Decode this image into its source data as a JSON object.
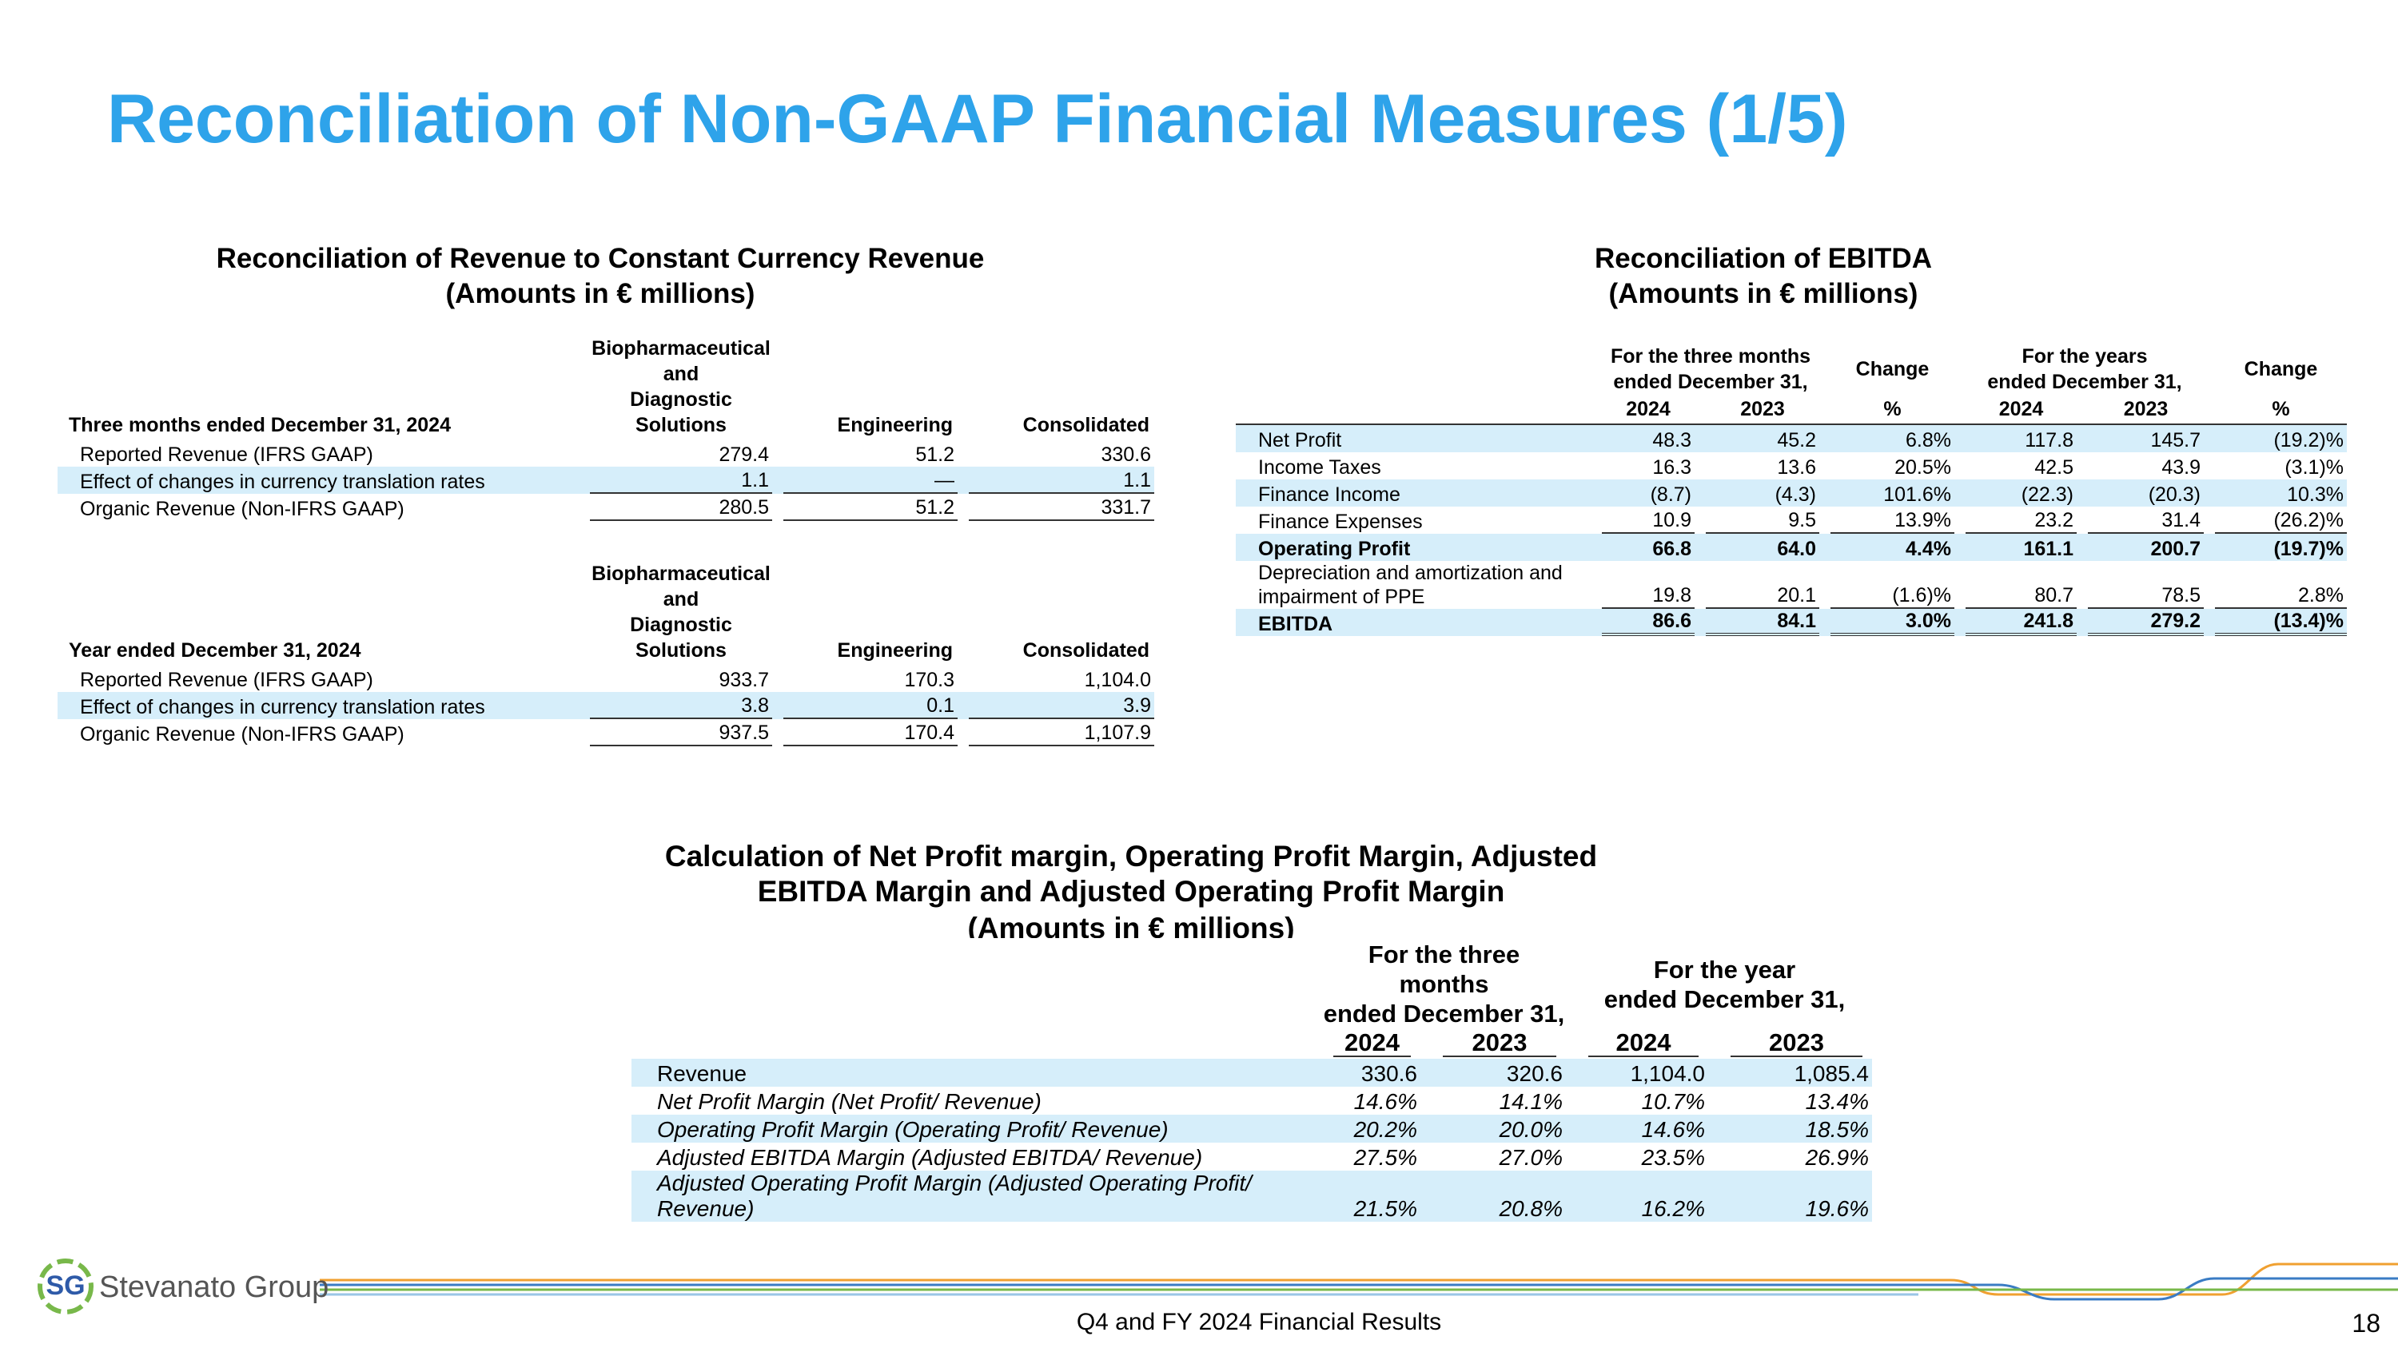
{
  "title": "Reconciliation of Non-GAAP Financial Measures (1/5)",
  "revenue_table": {
    "title": "Reconciliation of Revenue to Constant Currency Revenue",
    "subtitle": "(Amounts in € millions)",
    "sections": [
      {
        "period": "Three months ended December 31, 2024",
        "columns": [
          "Biopharmaceutical\nand\nDiagnostic\nSolutions",
          "Engineering",
          "Consolidated"
        ],
        "rows": [
          {
            "label": "Reported Revenue (IFRS GAAP)",
            "values": [
              "279.4",
              "51.2",
              "330.6"
            ]
          },
          {
            "label": "Effect of changes in currency translation rates",
            "values": [
              "1.1",
              "—",
              "1.1"
            ]
          },
          {
            "label": "Organic Revenue (Non-IFRS GAAP)",
            "values": [
              "280.5",
              "51.2",
              "331.7"
            ]
          }
        ]
      },
      {
        "period": "Year ended December 31, 2024",
        "columns": [
          "Biopharmaceutical\nand\nDiagnostic\nSolutions",
          "Engineering",
          "Consolidated"
        ],
        "rows": [
          {
            "label": "Reported Revenue (IFRS GAAP)",
            "values": [
              "933.7",
              "170.3",
              "1,104.0"
            ]
          },
          {
            "label": "Effect of changes in currency translation rates",
            "values": [
              "3.8",
              "0.1",
              "3.9"
            ]
          },
          {
            "label": "Organic Revenue (Non-IFRS GAAP)",
            "values": [
              "937.5",
              "170.4",
              "1,107.9"
            ]
          }
        ]
      }
    ]
  },
  "ebitda_table": {
    "title": "Reconciliation of EBITDA",
    "subtitle": "(Amounts in € millions)",
    "groups": [
      "For the three months\nended December 31,",
      "Change",
      "For the years\nended December 31,",
      "Change"
    ],
    "columns": [
      "2024",
      "2023",
      "%",
      "2024",
      "2023",
      "%"
    ],
    "rows": [
      {
        "label": "Net Profit",
        "values": [
          "48.3",
          "45.2",
          "6.8%",
          "117.8",
          "145.7",
          "(19.2)%"
        ]
      },
      {
        "label": "Income Taxes",
        "values": [
          "16.3",
          "13.6",
          "20.5%",
          "42.5",
          "43.9",
          "(3.1)%"
        ]
      },
      {
        "label": "Finance Income",
        "values": [
          "(8.7)",
          "(4.3)",
          "101.6%",
          "(22.3)",
          "(20.3)",
          "10.3%"
        ]
      },
      {
        "label": "Finance Expenses",
        "values": [
          "10.9",
          "9.5",
          "13.9%",
          "23.2",
          "31.4",
          "(26.2)%"
        ]
      },
      {
        "label": "Operating Profit",
        "bold": true,
        "values": [
          "66.8",
          "64.0",
          "4.4%",
          "161.1",
          "200.7",
          "(19.7)%"
        ]
      },
      {
        "label": "Depreciation and amortization and\nimpairment of PPE",
        "values": [
          "19.8",
          "20.1",
          "(1.6)%",
          "80.7",
          "78.5",
          "2.8%"
        ]
      },
      {
        "label": "EBITDA",
        "bold": true,
        "values": [
          "86.6",
          "84.1",
          "3.0%",
          "241.8",
          "279.2",
          "(13.4)%"
        ]
      }
    ]
  },
  "margin_table": {
    "title": "Calculation of Net Profit margin, Operating Profit Margin, Adjusted\nEBITDA Margin and Adjusted Operating Profit Margin",
    "subtitle": "(Amounts in € millions)",
    "groups": [
      "For the three\nmonths\nended December 31,",
      "For the year\nended December 31,"
    ],
    "columns": [
      "2024",
      "2023",
      "2024",
      "2023"
    ],
    "rows": [
      {
        "label": "Revenue",
        "values": [
          "330.6",
          "320.6",
          "1,104.0",
          "1,085.4"
        ]
      },
      {
        "label": "Net Profit Margin (Net Profit/ Revenue)",
        "values": [
          "14.6%",
          "14.1%",
          "10.7%",
          "13.4%"
        ]
      },
      {
        "label": "Operating Profit Margin (Operating Profit/ Revenue)",
        "values": [
          "20.2%",
          "20.0%",
          "14.6%",
          "18.5%"
        ]
      },
      {
        "label": "Adjusted EBITDA Margin (Adjusted EBITDA/ Revenue)",
        "values": [
          "27.5%",
          "27.0%",
          "23.5%",
          "26.9%"
        ]
      },
      {
        "label": "Adjusted Operating Profit Margin (Adjusted Operating Profit/\nRevenue)",
        "values": [
          "21.5%",
          "20.8%",
          "16.2%",
          "19.6%"
        ]
      }
    ]
  },
  "footer": {
    "logo_mark": "SG",
    "logo_text": "Stevanato Group",
    "text": "Q4 and FY 2024 Financial Results",
    "page": "18"
  }
}
